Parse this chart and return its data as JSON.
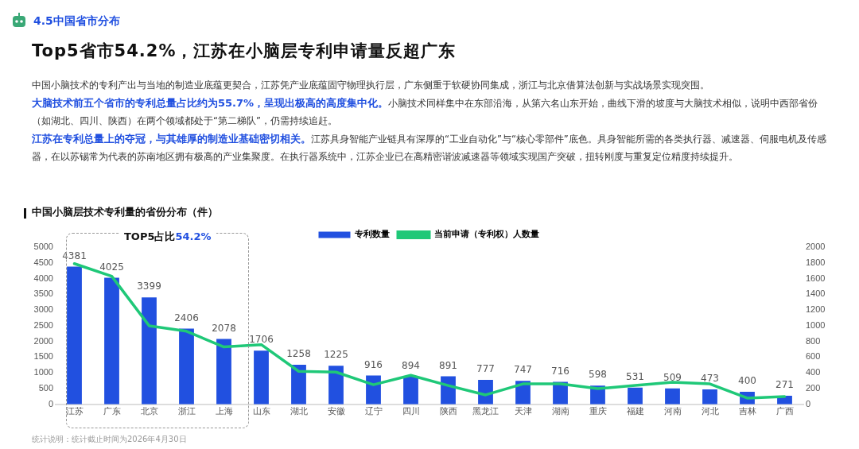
{
  "chart_data": {
    "type": "bar",
    "title": "中国小脑层技术专利量的省份分布（件）",
    "categories": [
      "江苏",
      "广东",
      "北京",
      "浙江",
      "上海",
      "山东",
      "湖北",
      "安徽",
      "辽宁",
      "四川",
      "陕西",
      "黑龙江",
      "天津",
      "湖南",
      "重庆",
      "福建",
      "河南",
      "河北",
      "吉林",
      "广西"
    ],
    "series": [
      {
        "name": "专利数量",
        "color": "#2150e0",
        "values": [
          4381,
          4025,
          3399,
          2406,
          2078,
          1706,
          1258,
          1225,
          916,
          894,
          891,
          777,
          747,
          716,
          598,
          531,
          509,
          473,
          400,
          271
        ],
        "value_labels": [
          "4381",
          "4025",
          "3399",
          "2406",
          "2078",
          "1706",
          "1258",
          "1225",
          "916",
          "894",
          "891",
          "777",
          "747",
          "716",
          "598",
          "531",
          "509",
          "473",
          "400",
          "271"
        ]
      },
      {
        "name": "当前申请（专利权）人数量",
        "type": "line",
        "axis": "y2",
        "color": "#1fc878",
        "values": [
          1790,
          1630,
          1000,
          930,
          730,
          760,
          420,
          410,
          250,
          370,
          240,
          120,
          260,
          260,
          200,
          240,
          280,
          260,
          80,
          100
        ]
      }
    ],
    "ylim": [
      0,
      5000
    ],
    "yticks": [
      0,
      500,
      1000,
      1500,
      2000,
      2500,
      3000,
      3500,
      4000,
      4500,
      5000
    ],
    "y2lim": [
      0,
      2000
    ],
    "y2ticks": [
      0,
      200,
      400,
      600,
      800,
      1000,
      1200,
      1400,
      1600,
      1800,
      2000
    ],
    "grid": false,
    "legend": "top",
    "annotations": [
      "4.5中国省市分布",
      "Top5省市54.2%，江苏在小脑层专利申请量反超广东",
      "中国小脑技术的专利产出与当地的制造业底蕴更契合，江苏凭产业底蕴固守物理执行层，广东侧重于软硬协同集成，浙江与北京借算法创新与实战场景实现突围。",
      "大脑技术前五个省市的专利总量占比约为55.7%，呈现出极高的高度集中化。",
      "小脑技术同样集中在东部沿海，从第六名山东开始，曲线下滑的坡度与大脑技术相似，说明中西部省份（如湖北、四川、陕西）在两个领域都处于“第二梯队”，仍需持续追赶。",
      "江苏在专利总量上的夺冠，与其雄厚的制造业基础密切相关。",
      "江苏具身智能产业链具有深厚的“工业自动化”与“核心零部件”底色。具身智能所需的各类执行器、减速器、伺服电机及传感器，在以苏锡常为代表的苏南地区拥有极高的产业集聚度。在执行器系统中，江苏企业已在高精密谐波减速器等领域实现国产突破，扭转刚度与重复定位精度持续提升。",
      "TOP5占比",
      "54.2%",
      "统计说明：统计截止时间为2026年4月30日"
    ]
  }
}
